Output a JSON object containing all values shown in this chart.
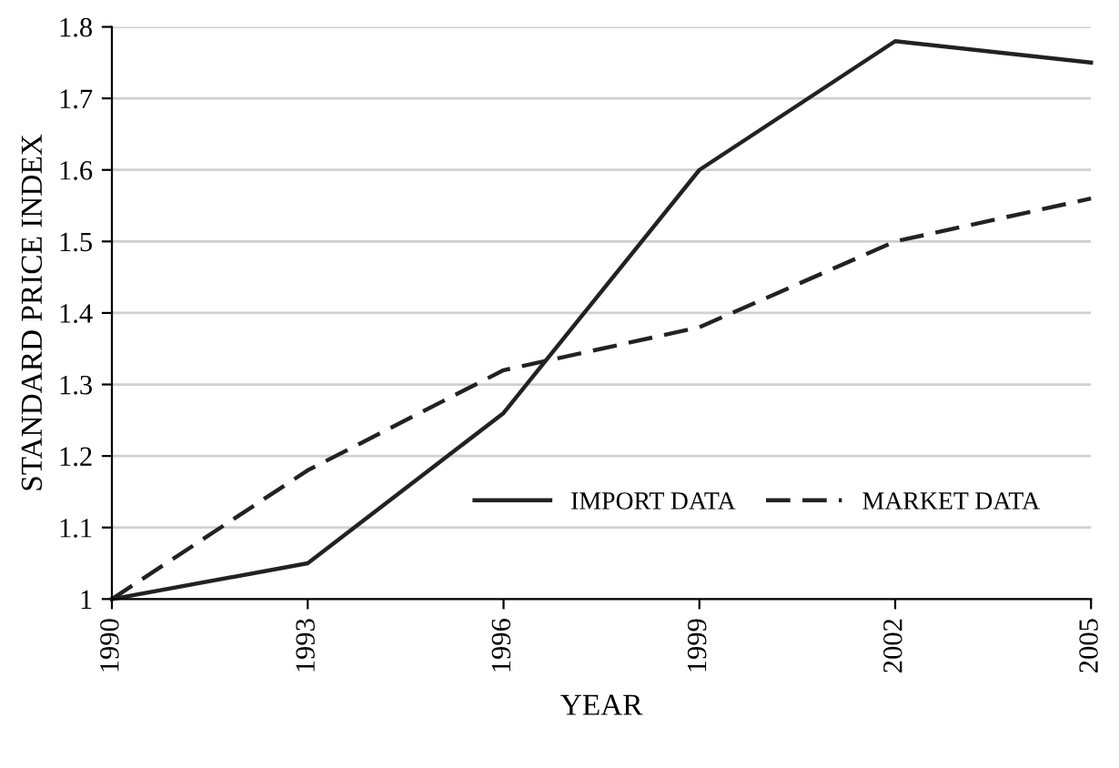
{
  "chart_data": {
    "type": "line",
    "xlabel": "YEAR",
    "ylabel": "STANDARD PRICE INDEX",
    "categories": [
      "1990",
      "1993",
      "1996",
      "1999",
      "2002",
      "2005"
    ],
    "series": [
      {
        "name": "IMPORT DATA",
        "color": "#222222",
        "line_style": "solid",
        "values": [
          1.0,
          1.05,
          1.26,
          1.6,
          1.78,
          1.75
        ]
      },
      {
        "name": "MARKET DATA",
        "color": "#222222",
        "line_style": "dashed",
        "values": [
          1.0,
          1.18,
          1.32,
          1.38,
          1.5,
          1.56
        ]
      }
    ],
    "ylim": [
      1,
      1.8
    ],
    "yticks": [
      1,
      1.1,
      1.2,
      1.3,
      1.4,
      1.5,
      1.6,
      1.7,
      1.8
    ],
    "grid": "y",
    "legend": "bottom right"
  }
}
